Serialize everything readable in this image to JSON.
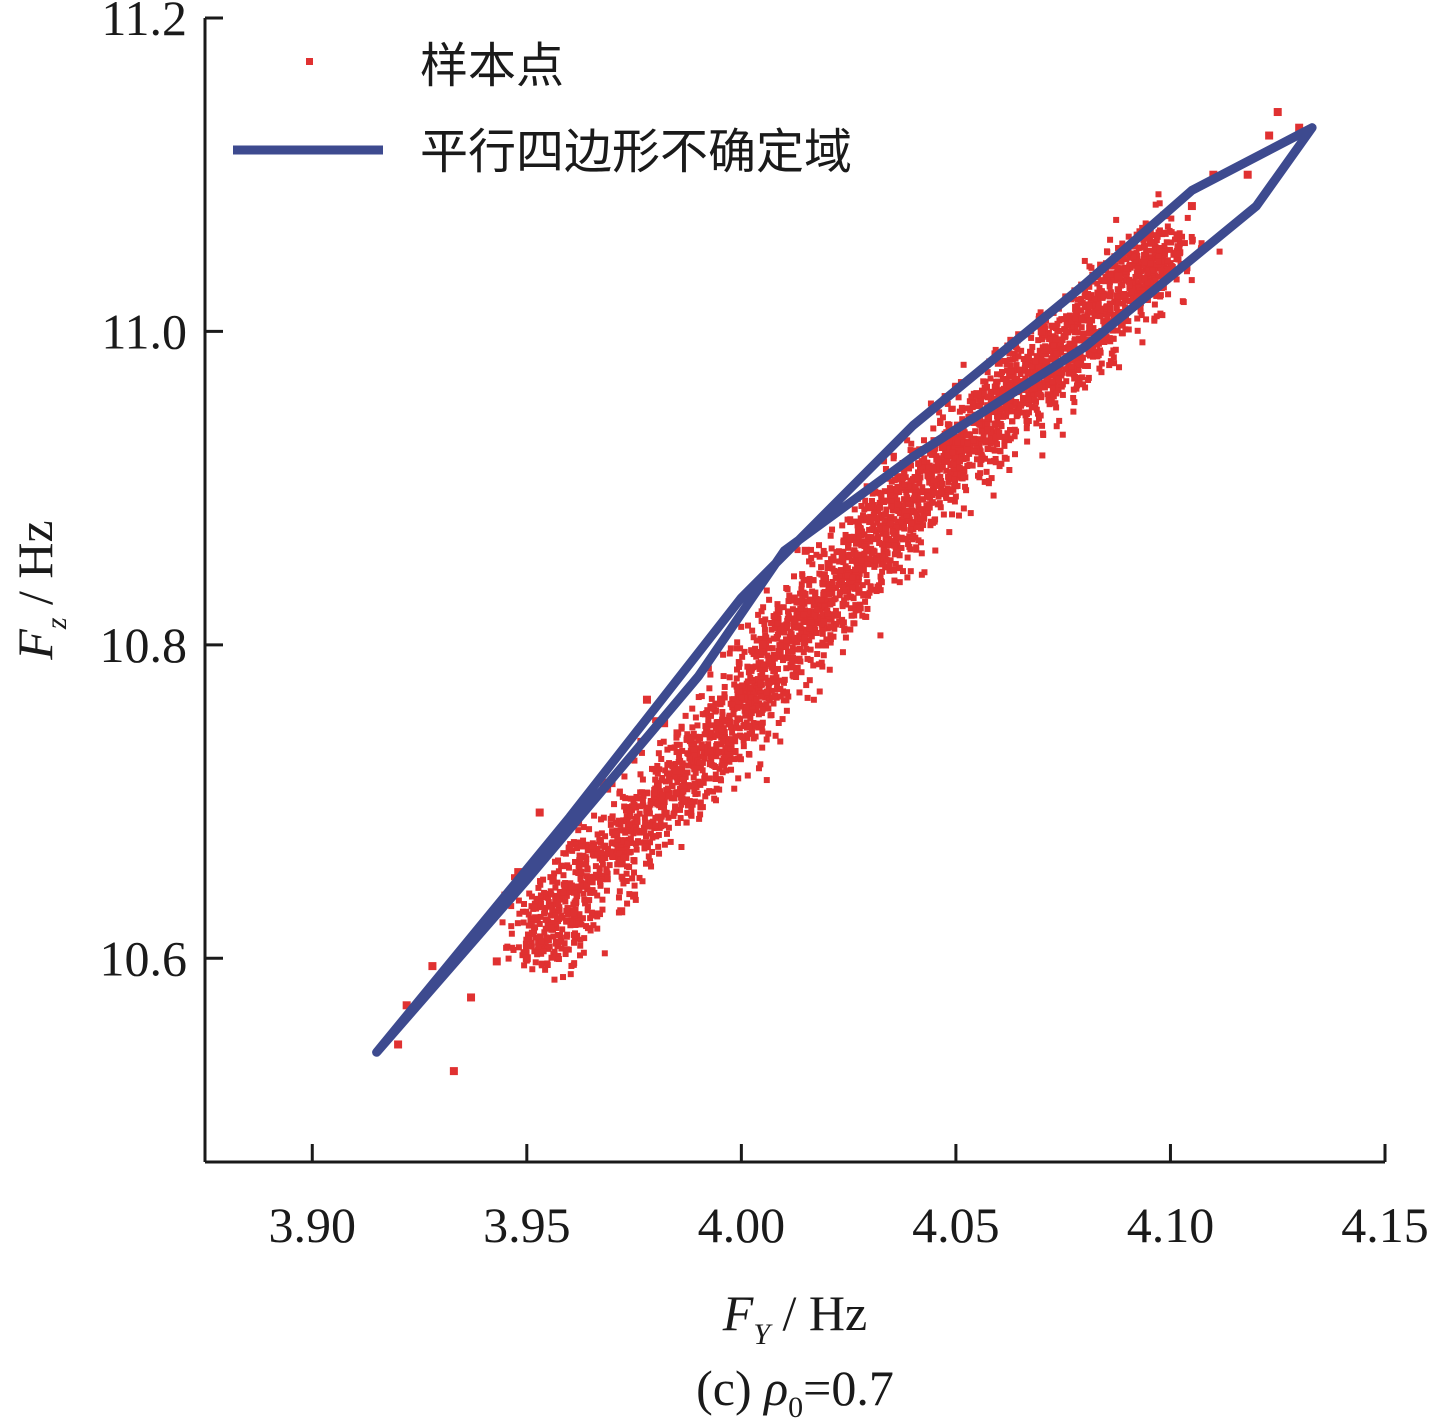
{
  "chart_data": {
    "type": "scatter",
    "xaxis": {
      "symbol": "F",
      "subscript": "Y",
      "unit": " / Hz"
    },
    "yaxis": {
      "symbol": "F",
      "subscript": "z",
      "unit": " / Hz"
    },
    "xlim": [
      3.875,
      4.15
    ],
    "ylim": [
      10.47,
      11.2
    ],
    "xticks": [
      3.9,
      3.95,
      4.0,
      4.05,
      4.1,
      4.15
    ],
    "xtick_labels": [
      "3.90",
      "3.95",
      "4.00",
      "4.05",
      "4.10",
      "4.15"
    ],
    "yticks": [
      10.6,
      10.8,
      11.0,
      11.2
    ],
    "ytick_labels": [
      "10.6",
      "10.8",
      "11.0",
      "11.2"
    ],
    "grid": false,
    "legend_position": "top-left",
    "caption": {
      "prefix": "(c) ",
      "symbol": "ρ",
      "subscript": "0",
      "suffix": "=0.7"
    },
    "series": [
      {
        "name": "样本点",
        "kind": "scatter",
        "color": "#e03131",
        "core_cloud": [
          [
            3.952,
            10.605
          ],
          [
            3.96,
            10.64
          ],
          [
            3.975,
            10.68
          ],
          [
            3.99,
            10.725
          ],
          [
            4.0,
            10.76
          ],
          [
            4.01,
            10.8
          ],
          [
            4.02,
            10.83
          ],
          [
            4.03,
            10.86
          ],
          [
            4.04,
            10.895
          ],
          [
            4.05,
            10.92
          ],
          [
            4.06,
            10.95
          ],
          [
            4.07,
            10.975
          ],
          [
            4.08,
            11.0
          ],
          [
            4.09,
            11.03
          ],
          [
            4.1,
            11.06
          ]
        ],
        "outliers": [
          [
            3.92,
            10.545
          ],
          [
            3.922,
            10.57
          ],
          [
            3.928,
            10.595
          ],
          [
            3.933,
            10.528
          ],
          [
            3.937,
            10.575
          ],
          [
            3.94,
            10.62
          ],
          [
            3.943,
            10.598
          ],
          [
            3.945,
            10.64
          ],
          [
            3.948,
            10.655
          ],
          [
            3.95,
            10.6
          ],
          [
            3.953,
            10.693
          ],
          [
            3.957,
            10.61
          ],
          [
            3.96,
            10.67
          ],
          [
            3.965,
            10.65
          ],
          [
            3.968,
            10.712
          ],
          [
            3.972,
            10.63
          ],
          [
            3.975,
            10.64
          ],
          [
            3.978,
            10.765
          ],
          [
            3.982,
            10.75
          ],
          [
            3.985,
            10.72
          ],
          [
            3.993,
            10.76
          ],
          [
            4.005,
            10.8
          ],
          [
            4.015,
            10.86
          ],
          [
            4.03,
            10.88
          ],
          [
            4.045,
            10.93
          ],
          [
            4.055,
            10.96
          ],
          [
            4.06,
            10.98
          ],
          [
            4.07,
            11.0
          ],
          [
            4.078,
            11.015
          ],
          [
            4.088,
            11.035
          ],
          [
            4.095,
            11.06
          ],
          [
            4.105,
            11.08
          ],
          [
            4.11,
            11.1
          ],
          [
            4.118,
            11.1
          ],
          [
            4.123,
            11.125
          ],
          [
            4.125,
            11.14
          ],
          [
            4.13,
            11.13
          ]
        ]
      },
      {
        "name": "平行四边形不确定域",
        "kind": "line",
        "color": "#3d4a8f",
        "x": [
          3.915,
          3.95,
          3.99,
          4.01,
          4.04,
          4.08,
          4.12,
          4.133,
          4.105,
          4.08,
          4.04,
          4.0,
          3.96,
          3.915
        ],
        "y": [
          10.54,
          10.65,
          10.78,
          10.86,
          10.92,
          10.99,
          11.08,
          11.13,
          11.09,
          11.03,
          10.94,
          10.83,
          10.69,
          10.54
        ]
      }
    ]
  }
}
